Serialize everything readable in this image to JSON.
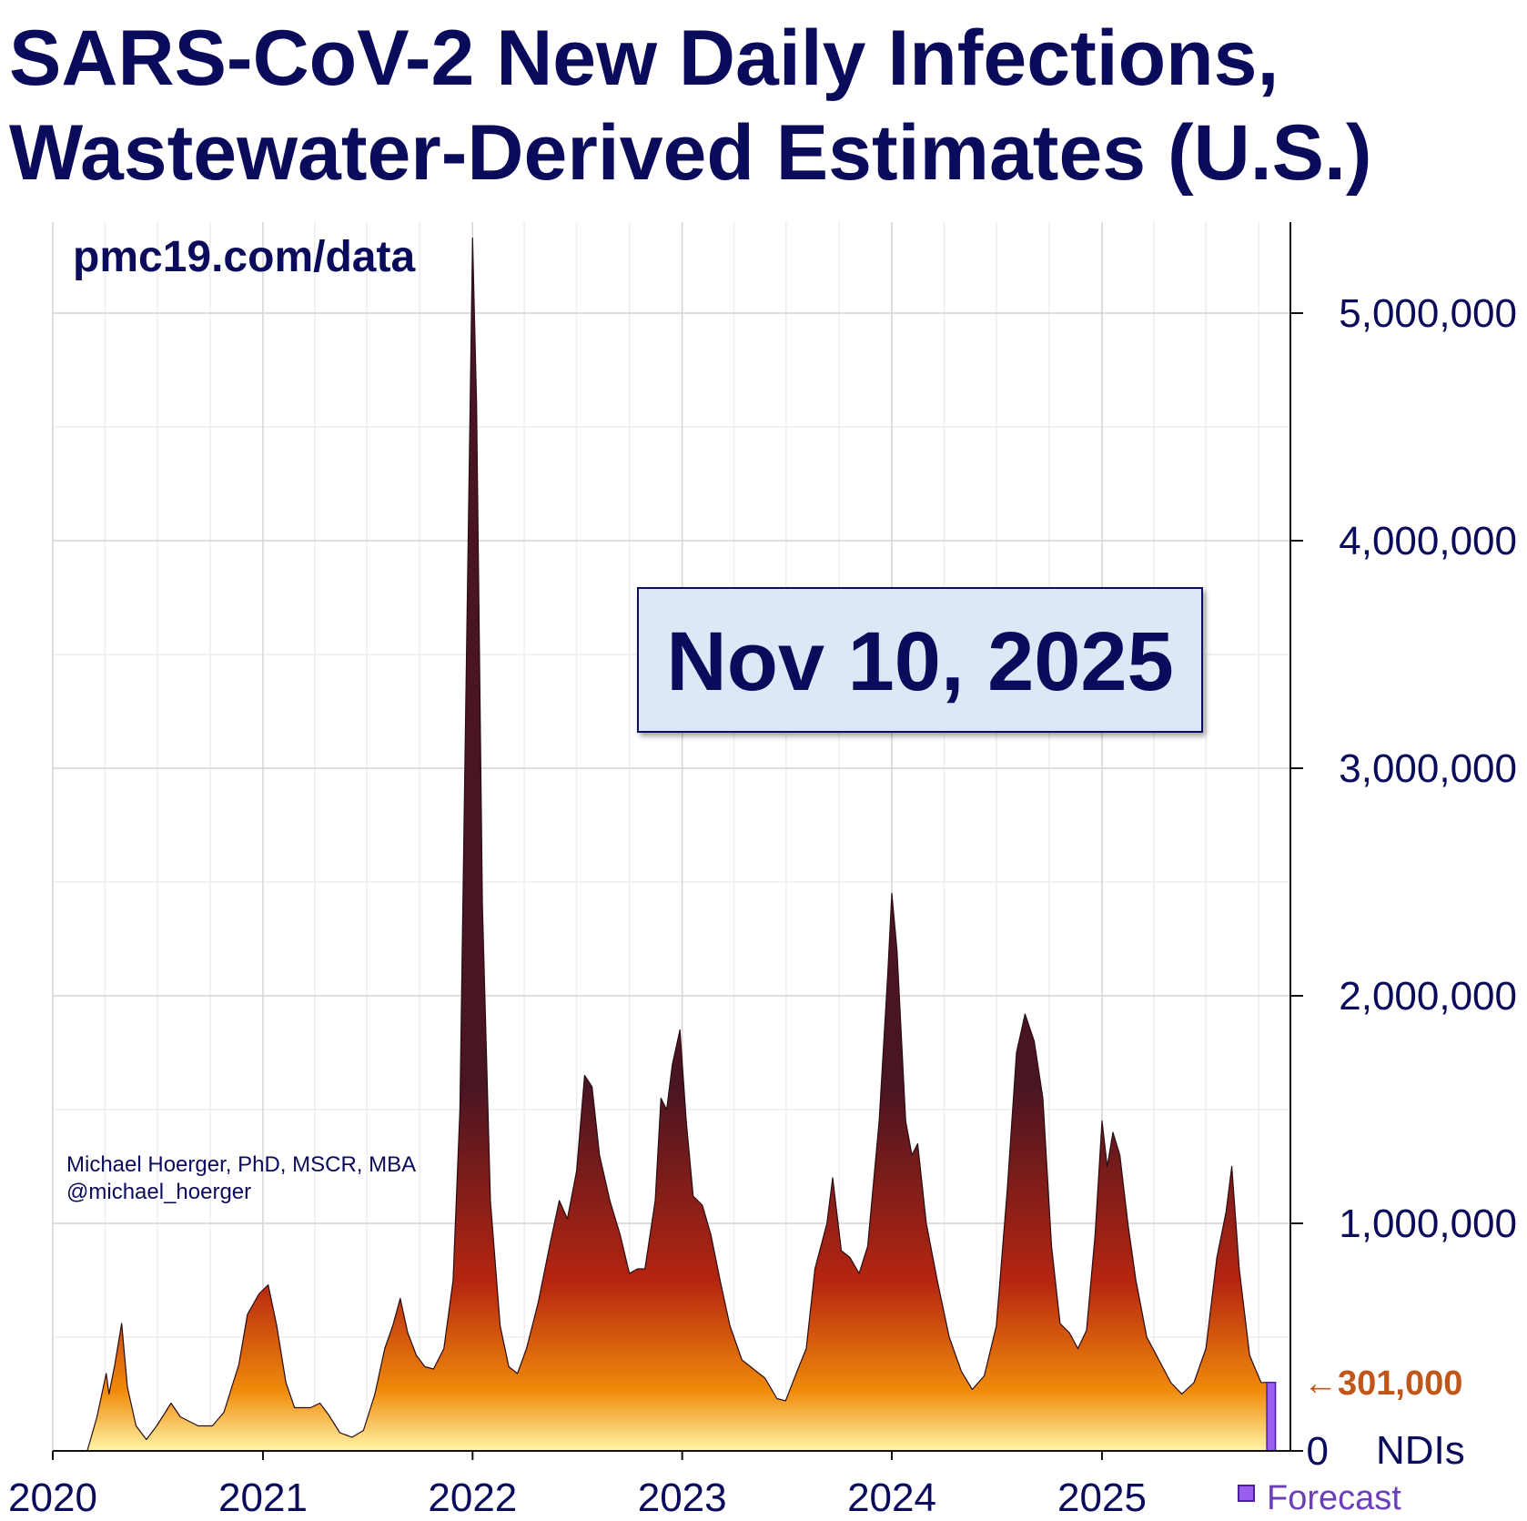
{
  "title_line1": "SARS-CoV-2 New Daily Infections,",
  "title_line2": "Wastewater-Derived Estimates (U.S.)",
  "source": "pmc19.com/data",
  "author": "Michael Hoerger, PhD, MSCR, MBA",
  "handle": "@michael_hoerger",
  "date_badge": "Nov 10, 2025",
  "current_value_label": "←301,000",
  "legend_forecast": "Forecast",
  "colors": {
    "title": "#0b0b5c",
    "fill_top": "#4a1522",
    "fill_mid": "#b52510",
    "fill_low": "#f08a0a",
    "fill_base": "#fff5a8",
    "forecast": "#9b5ff0",
    "current_value": "#c0561a",
    "badge_bg": "#dde8f6"
  },
  "chart_data": {
    "type": "area",
    "title": "SARS-CoV-2 New Daily Infections, Wastewater-Derived Estimates (U.S.)",
    "xlabel": "",
    "ylabel": "NDIs",
    "x_ticks": [
      "2020",
      "2021",
      "2022",
      "2023",
      "2024",
      "2025"
    ],
    "y_ticks": [
      {
        "value": 0,
        "label": "0"
      },
      {
        "value": 1000000,
        "label": "1,000,000"
      },
      {
        "value": 2000000,
        "label": "2,000,000"
      },
      {
        "value": 3000000,
        "label": "3,000,000"
      },
      {
        "value": 4000000,
        "label": "4,000,000"
      },
      {
        "value": 5000000,
        "label": "5,000,000"
      }
    ],
    "ylim": [
      0,
      5400000
    ],
    "xlim": [
      "2020-01-01",
      "2025-11-25"
    ],
    "y_axis_side": "right",
    "grid": true,
    "legend": [
      {
        "name": "Forecast",
        "color": "#9b5ff0",
        "placement": "bottom-right"
      }
    ],
    "current_value": 301000,
    "series": [
      {
        "name": "",
        "points": [
          [
            "2020-03-01",
            0
          ],
          [
            "2020-03-18",
            150000
          ],
          [
            "2020-04-03",
            340000
          ],
          [
            "2020-04-08",
            250000
          ],
          [
            "2020-04-18",
            380000
          ],
          [
            "2020-04-30",
            560000
          ],
          [
            "2020-05-10",
            280000
          ],
          [
            "2020-05-25",
            110000
          ],
          [
            "2020-06-12",
            50000
          ],
          [
            "2020-06-30",
            110000
          ],
          [
            "2020-07-15",
            170000
          ],
          [
            "2020-07-25",
            210000
          ],
          [
            "2020-08-10",
            150000
          ],
          [
            "2020-09-10",
            110000
          ],
          [
            "2020-10-05",
            110000
          ],
          [
            "2020-10-25",
            170000
          ],
          [
            "2020-11-20",
            380000
          ],
          [
            "2020-12-05",
            600000
          ],
          [
            "2020-12-25",
            690000
          ],
          [
            "2021-01-10",
            730000
          ],
          [
            "2021-01-25",
            550000
          ],
          [
            "2021-02-10",
            300000
          ],
          [
            "2021-02-25",
            190000
          ],
          [
            "2021-03-25",
            190000
          ],
          [
            "2021-04-10",
            210000
          ],
          [
            "2021-04-25",
            160000
          ],
          [
            "2021-05-15",
            80000
          ],
          [
            "2021-06-05",
            60000
          ],
          [
            "2021-06-25",
            90000
          ],
          [
            "2021-07-15",
            250000
          ],
          [
            "2021-08-01",
            450000
          ],
          [
            "2021-08-15",
            550000
          ],
          [
            "2021-08-28",
            670000
          ],
          [
            "2021-09-10",
            520000
          ],
          [
            "2021-09-25",
            420000
          ],
          [
            "2021-10-10",
            370000
          ],
          [
            "2021-10-25",
            360000
          ],
          [
            "2021-11-12",
            450000
          ],
          [
            "2021-11-28",
            750000
          ],
          [
            "2021-12-10",
            1500000
          ],
          [
            "2021-12-22",
            3600000
          ],
          [
            "2022-01-01",
            5330000
          ],
          [
            "2022-01-08",
            4600000
          ],
          [
            "2022-01-18",
            2400000
          ],
          [
            "2022-02-01",
            1100000
          ],
          [
            "2022-02-18",
            550000
          ],
          [
            "2022-03-05",
            370000
          ],
          [
            "2022-03-20",
            340000
          ],
          [
            "2022-04-05",
            450000
          ],
          [
            "2022-04-25",
            650000
          ],
          [
            "2022-05-15",
            900000
          ],
          [
            "2022-06-01",
            1100000
          ],
          [
            "2022-06-15",
            1020000
          ],
          [
            "2022-07-01",
            1230000
          ],
          [
            "2022-07-15",
            1650000
          ],
          [
            "2022-07-28",
            1600000
          ],
          [
            "2022-08-10",
            1300000
          ],
          [
            "2022-08-28",
            1100000
          ],
          [
            "2022-09-15",
            950000
          ],
          [
            "2022-10-01",
            780000
          ],
          [
            "2022-10-15",
            800000
          ],
          [
            "2022-10-28",
            800000
          ],
          [
            "2022-11-15",
            1100000
          ],
          [
            "2022-11-25",
            1550000
          ],
          [
            "2022-12-05",
            1500000
          ],
          [
            "2022-12-15",
            1700000
          ],
          [
            "2022-12-28",
            1850000
          ],
          [
            "2023-01-08",
            1450000
          ],
          [
            "2023-01-20",
            1120000
          ],
          [
            "2023-02-05",
            1080000
          ],
          [
            "2023-02-20",
            950000
          ],
          [
            "2023-03-08",
            750000
          ],
          [
            "2023-03-25",
            550000
          ],
          [
            "2023-04-15",
            400000
          ],
          [
            "2023-05-05",
            360000
          ],
          [
            "2023-05-25",
            320000
          ],
          [
            "2023-06-15",
            230000
          ],
          [
            "2023-06-30",
            220000
          ],
          [
            "2023-07-20",
            350000
          ],
          [
            "2023-08-05",
            450000
          ],
          [
            "2023-08-20",
            800000
          ],
          [
            "2023-09-10",
            1000000
          ],
          [
            "2023-09-20",
            1200000
          ],
          [
            "2023-10-05",
            880000
          ],
          [
            "2023-10-20",
            850000
          ],
          [
            "2023-11-05",
            780000
          ],
          [
            "2023-11-20",
            900000
          ],
          [
            "2023-12-10",
            1450000
          ],
          [
            "2023-12-25",
            2100000
          ],
          [
            "2024-01-01",
            2450000
          ],
          [
            "2024-01-10",
            2200000
          ],
          [
            "2024-01-25",
            1450000
          ],
          [
            "2024-02-05",
            1300000
          ],
          [
            "2024-02-15",
            1350000
          ],
          [
            "2024-03-01",
            1000000
          ],
          [
            "2024-03-20",
            750000
          ],
          [
            "2024-04-10",
            500000
          ],
          [
            "2024-05-01",
            350000
          ],
          [
            "2024-05-20",
            270000
          ],
          [
            "2024-06-10",
            330000
          ],
          [
            "2024-07-01",
            550000
          ],
          [
            "2024-07-20",
            1150000
          ],
          [
            "2024-08-05",
            1750000
          ],
          [
            "2024-08-20",
            1920000
          ],
          [
            "2024-09-05",
            1800000
          ],
          [
            "2024-09-20",
            1550000
          ],
          [
            "2024-10-05",
            900000
          ],
          [
            "2024-10-20",
            560000
          ],
          [
            "2024-11-05",
            520000
          ],
          [
            "2024-11-20",
            450000
          ],
          [
            "2024-12-05",
            530000
          ],
          [
            "2024-12-20",
            950000
          ],
          [
            "2025-01-01",
            1450000
          ],
          [
            "2025-01-10",
            1250000
          ],
          [
            "2025-01-20",
            1400000
          ],
          [
            "2025-02-01",
            1300000
          ],
          [
            "2025-02-15",
            1000000
          ],
          [
            "2025-03-01",
            750000
          ],
          [
            "2025-03-20",
            500000
          ],
          [
            "2025-04-10",
            400000
          ],
          [
            "2025-05-01",
            300000
          ],
          [
            "2025-05-20",
            250000
          ],
          [
            "2025-06-10",
            300000
          ],
          [
            "2025-07-01",
            450000
          ],
          [
            "2025-07-20",
            850000
          ],
          [
            "2025-08-05",
            1050000
          ],
          [
            "2025-08-15",
            1250000
          ],
          [
            "2025-08-28",
            800000
          ],
          [
            "2025-09-15",
            420000
          ],
          [
            "2025-10-05",
            301000
          ],
          [
            "2025-10-15",
            301000
          ]
        ]
      },
      {
        "name": "Forecast",
        "points": [
          [
            "2025-10-15",
            301000
          ],
          [
            "2025-10-30",
            301000
          ]
        ]
      }
    ]
  }
}
